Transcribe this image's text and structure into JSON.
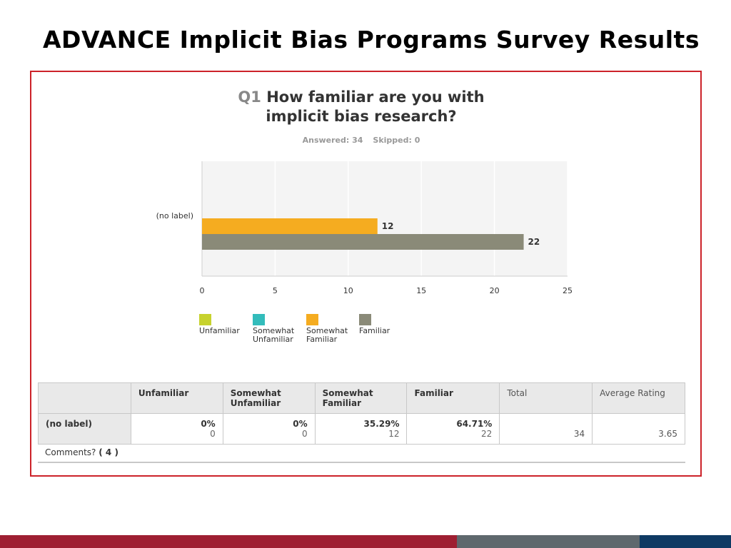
{
  "slide": {
    "title": "ADVANCE Implicit Bias Programs Survey Results"
  },
  "question": {
    "number": "Q1",
    "text_line1": "How familiar are you with",
    "text_line2": "implicit bias research?",
    "answered": "Answered: 34",
    "skipped": "Skipped: 0"
  },
  "chart_data": {
    "type": "bar",
    "orientation": "horizontal",
    "categories": [
      "(no label)"
    ],
    "series": [
      {
        "name": "Unfamiliar",
        "values": [
          0
        ],
        "color": "#c7d22e"
      },
      {
        "name": "Somewhat Unfamiliar",
        "values": [
          0
        ],
        "color": "#33bcbb"
      },
      {
        "name": "Somewhat Familiar",
        "values": [
          12
        ],
        "color": "#f5ac20"
      },
      {
        "name": "Familiar",
        "values": [
          22
        ],
        "color": "#8a8a78"
      }
    ],
    "x_ticks": [
      "0",
      "5",
      "10",
      "15",
      "20",
      "25"
    ],
    "xlim": [
      0,
      25
    ],
    "grid": true,
    "legend_position": "bottom"
  },
  "legend": [
    {
      "line1": "Unfamiliar",
      "line2": "",
      "color": "#c7d22e"
    },
    {
      "line1": "Somewhat",
      "line2": "Unfamiliar",
      "color": "#33bcbb"
    },
    {
      "line1": "Somewhat",
      "line2": "Familiar",
      "color": "#f5ac20"
    },
    {
      "line1": "Familiar",
      "line2": "",
      "color": "#8a8a78"
    }
  ],
  "table": {
    "headers": {
      "unfamiliar": "Unfamiliar",
      "somewhat_unfamiliar_1": "Somewhat",
      "somewhat_unfamiliar_2": "Unfamiliar",
      "somewhat_familiar_1": "Somewhat",
      "somewhat_familiar_2": "Familiar",
      "familiar": "Familiar",
      "total": "Total",
      "average": "Average Rating"
    },
    "row": {
      "label": "(no label)",
      "unfamiliar_pct": "0%",
      "unfamiliar_n": "0",
      "somewhat_unfamiliar_pct": "0%",
      "somewhat_unfamiliar_n": "0",
      "somewhat_familiar_pct": "35.29%",
      "somewhat_familiar_n": "12",
      "familiar_pct": "64.71%",
      "familiar_n": "22",
      "total": "34",
      "average": "3.65"
    },
    "comments_label": "Comments?",
    "comments_count": "( 4 )"
  },
  "footer": {
    "colors": [
      "#9e1f32",
      "#5f686d",
      "#0f3a63"
    ]
  }
}
